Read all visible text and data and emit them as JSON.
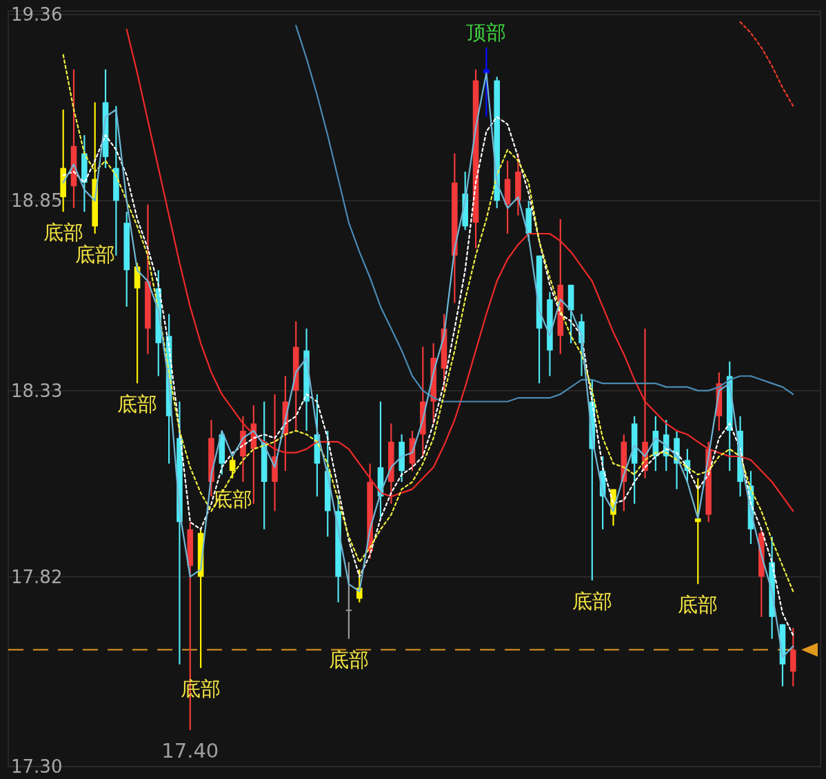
{
  "chart_data": {
    "type": "candlestick",
    "categories": [
      null,
      null,
      null,
      null,
      null,
      null,
      null,
      null,
      null,
      null,
      null,
      null,
      null,
      null,
      null,
      null,
      null,
      null,
      null,
      null,
      null,
      null,
      null,
      null,
      null,
      null,
      null,
      null,
      null,
      null,
      null,
      null,
      null,
      null,
      null,
      null,
      null,
      null,
      null,
      null,
      null,
      null,
      null,
      null,
      null,
      null,
      null,
      null,
      null,
      null,
      null,
      null,
      null,
      null,
      null,
      null,
      null,
      null,
      null,
      null,
      null,
      null,
      null,
      null,
      null,
      null,
      null,
      null,
      null,
      null
    ],
    "ohlc": [
      [
        18.86,
        19.1,
        18.82,
        18.94
      ],
      [
        18.89,
        19.21,
        18.83,
        19.0
      ],
      [
        18.98,
        19.03,
        18.82,
        18.9
      ],
      [
        18.78,
        19.12,
        18.76,
        18.91
      ],
      [
        19.12,
        19.21,
        18.94,
        18.97
      ],
      [
        18.94,
        19.11,
        18.7,
        18.85
      ],
      [
        18.79,
        18.82,
        18.56,
        18.66
      ],
      [
        18.67,
        18.68,
        18.35,
        18.61
      ],
      [
        18.5,
        18.84,
        18.43,
        18.63
      ],
      [
        18.61,
        18.66,
        18.37,
        18.46
      ],
      [
        18.48,
        18.54,
        18.13,
        18.26
      ],
      [
        18.2,
        18.3,
        17.58,
        17.97
      ],
      [
        17.85,
        17.97,
        17.4,
        17.95
      ],
      [
        17.82,
        17.95,
        17.57,
        17.94
      ],
      [
        18.08,
        18.25,
        18.04,
        18.2
      ],
      [
        18.21,
        18.22,
        18.1,
        18.13
      ],
      [
        18.11,
        18.15,
        18.09,
        18.14
      ],
      [
        18.15,
        18.26,
        18.08,
        18.22
      ],
      [
        18.17,
        18.29,
        18.02,
        18.24
      ],
      [
        18.19,
        18.3,
        17.95,
        18.08
      ],
      [
        18.08,
        18.32,
        18.0,
        18.15
      ],
      [
        18.21,
        18.37,
        18.11,
        18.3
      ],
      [
        18.33,
        18.52,
        18.22,
        18.45
      ],
      [
        18.44,
        18.5,
        18.22,
        18.3
      ],
      [
        18.21,
        18.32,
        18.04,
        18.13
      ],
      [
        18.11,
        18.22,
        17.93,
        18.0
      ],
      [
        18.0,
        18.04,
        17.75,
        17.82
      ],
      [
        17.73,
        17.86,
        17.65,
        17.73
      ],
      [
        17.76,
        17.84,
        17.75,
        17.79
      ],
      [
        17.89,
        18.13,
        17.87,
        18.08
      ],
      [
        18.12,
        18.3,
        17.98,
        18.04
      ],
      [
        18.08,
        18.24,
        18.02,
        18.19
      ],
      [
        18.19,
        18.21,
        18.08,
        18.11
      ],
      [
        18.13,
        18.22,
        18.11,
        18.2
      ],
      [
        18.21,
        18.45,
        18.15,
        18.3
      ],
      [
        18.3,
        18.46,
        18.24,
        18.42
      ],
      [
        18.39,
        18.54,
        18.33,
        18.5
      ],
      [
        18.7,
        18.98,
        18.57,
        18.9
      ],
      [
        18.87,
        18.93,
        18.77,
        18.78
      ],
      [
        18.79,
        19.21,
        18.72,
        19.18
      ],
      [
        19.21,
        19.27,
        19.08,
        19.2
      ],
      [
        19.18,
        19.19,
        18.83,
        18.85
      ],
      [
        18.84,
        18.96,
        18.76,
        18.91
      ],
      [
        18.85,
        18.98,
        18.81,
        18.93
      ],
      [
        18.83,
        18.85,
        18.74,
        18.76
      ],
      [
        18.7,
        18.7,
        18.35,
        18.5
      ],
      [
        18.58,
        18.6,
        18.37,
        18.44
      ],
      [
        18.48,
        18.8,
        18.43,
        18.62
      ],
      [
        18.62,
        18.62,
        18.46,
        18.55
      ],
      [
        18.52,
        18.54,
        18.37,
        18.46
      ],
      [
        18.3,
        18.36,
        17.81,
        18.17
      ],
      [
        18.11,
        18.15,
        17.95,
        18.04
      ],
      [
        18.06,
        18.06,
        17.96,
        17.99
      ],
      [
        18.08,
        18.21,
        18.0,
        18.19
      ],
      [
        18.24,
        18.26,
        18.02,
        18.13
      ],
      [
        18.11,
        18.5,
        18.09,
        18.19
      ],
      [
        18.22,
        18.26,
        18.11,
        18.15
      ],
      [
        18.21,
        18.25,
        18.11,
        18.15
      ],
      [
        18.2,
        18.22,
        18.06,
        18.13
      ],
      [
        18.14,
        18.17,
        18.08,
        18.11
      ],
      [
        17.98,
        18.09,
        17.8,
        17.97
      ],
      [
        17.99,
        18.19,
        17.97,
        18.17
      ],
      [
        18.26,
        18.38,
        18.22,
        18.35
      ],
      [
        18.37,
        18.41,
        18.11,
        18.22
      ],
      [
        18.22,
        18.26,
        18.04,
        18.08
      ],
      [
        18.07,
        18.11,
        17.91,
        17.95
      ],
      [
        17.82,
        17.95,
        17.71,
        17.94
      ],
      [
        17.86,
        17.93,
        17.65,
        17.71
      ],
      [
        17.69,
        17.69,
        17.52,
        17.58
      ],
      [
        17.56,
        17.68,
        17.52,
        17.62
      ]
    ],
    "colors": [
      "#fff200",
      "#f23a3a",
      "#4fe8f5",
      "#fff200",
      "#4fe8f5",
      "#4fe8f5",
      "#4fe8f5",
      "#fff200",
      "#f23a3a",
      "#4fe8f5",
      "#4fe8f5",
      "#4fe8f5",
      "#f23a3a",
      "#fff200",
      "#f23a3a",
      "#4fe8f5",
      "#fff200",
      "#f23a3a",
      "#f23a3a",
      "#4fe8f5",
      "#f23a3a",
      "#f23a3a",
      "#f23a3a",
      "#4fe8f5",
      "#4fe8f5",
      "#4fe8f5",
      "#4fe8f5",
      "#9a9a9a",
      "#fff200",
      "#f23a3a",
      "#4fe8f5",
      "#f23a3a",
      "#4fe8f5",
      "#f23a3a",
      "#f23a3a",
      "#f23a3a",
      "#f23a3a",
      "#f23a3a",
      "#4fe8f5",
      "#f23a3a",
      "#0010ff",
      "#4fe8f5",
      "#f23a3a",
      "#f23a3a",
      "#4fe8f5",
      "#4fe8f5",
      "#4fe8f5",
      "#f23a3a",
      "#4fe8f5",
      "#4fe8f5",
      "#4fe8f5",
      "#4fe8f5",
      "#fff200",
      "#f23a3a",
      "#4fe8f5",
      "#f23a3a",
      "#4fe8f5",
      "#4fe8f5",
      "#4fe8f5",
      "#4fe8f5",
      "#fff200",
      "#f23a3a",
      "#f23a3a",
      "#4fe8f5",
      "#4fe8f5",
      "#4fe8f5",
      "#f23a3a",
      "#4fe8f5",
      "#4fe8f5",
      "#f23a3a"
    ],
    "value_labels": [
      "底部",
      null,
      null,
      "底部",
      null,
      null,
      null,
      "底部",
      null,
      null,
      null,
      null,
      "17.40",
      "底部",
      null,
      null,
      "底部",
      null,
      null,
      null,
      null,
      null,
      null,
      null,
      null,
      null,
      null,
      "底部",
      null,
      null,
      null,
      null,
      null,
      null,
      null,
      null,
      null,
      null,
      null,
      null,
      "顶部",
      null,
      null,
      null,
      null,
      null,
      null,
      null,
      null,
      null,
      "底部",
      null,
      null,
      null,
      null,
      null,
      null,
      null,
      null,
      null,
      "底部",
      null,
      null,
      null,
      null,
      null,
      null,
      null,
      null,
      null
    ],
    "series": [
      {
        "type": "line",
        "color": "#f02a2a",
        "line_style": "solid",
        "values": [
          null,
          null,
          null,
          null,
          null,
          null,
          19.32,
          19.2,
          19.07,
          18.94,
          18.81,
          18.68,
          18.56,
          18.46,
          18.38,
          18.32,
          18.28,
          18.24,
          18.21,
          18.19,
          18.17,
          18.16,
          18.16,
          18.17,
          18.19,
          18.19,
          18.19,
          18.17,
          18.13,
          18.09,
          18.05,
          18.04,
          18.05,
          18.06,
          18.09,
          18.12,
          18.18,
          18.25,
          18.34,
          18.44,
          18.54,
          18.63,
          18.69,
          18.73,
          18.76,
          18.76,
          18.76,
          18.74,
          18.71,
          18.67,
          18.63,
          18.56,
          18.49,
          18.43,
          18.36,
          18.3,
          18.27,
          18.24,
          18.22,
          18.21,
          18.19,
          18.17,
          18.16,
          18.15,
          18.15,
          18.14,
          18.11,
          18.08,
          18.04,
          18.0
        ]
      },
      {
        "type": "line",
        "color": "#4a8ab5",
        "line_style": "solid",
        "values": [
          null,
          null,
          null,
          null,
          null,
          null,
          null,
          null,
          null,
          null,
          null,
          null,
          null,
          null,
          null,
          null,
          null,
          null,
          null,
          null,
          null,
          null,
          19.33,
          19.24,
          19.14,
          19.03,
          18.91,
          18.79,
          18.71,
          18.64,
          18.56,
          18.5,
          18.44,
          18.37,
          18.33,
          18.31,
          18.3,
          18.3,
          18.3,
          18.3,
          18.3,
          18.3,
          18.3,
          18.31,
          18.31,
          18.31,
          18.31,
          18.32,
          18.34,
          18.36,
          18.36,
          18.35,
          18.35,
          18.35,
          18.35,
          18.35,
          18.35,
          18.34,
          18.34,
          18.34,
          18.33,
          18.33,
          18.34,
          18.36,
          18.37,
          18.37,
          18.36,
          18.35,
          18.34,
          18.32
        ]
      },
      {
        "type": "line",
        "color": "#ffffff",
        "line_style": "dotted",
        "values": [
          18.92,
          18.93,
          18.9,
          18.96,
          19.03,
          18.99,
          18.92,
          18.8,
          18.72,
          18.62,
          18.45,
          18.22,
          17.97,
          17.95,
          18.02,
          18.12,
          18.16,
          18.18,
          18.2,
          18.21,
          18.2,
          18.24,
          18.26,
          18.32,
          18.3,
          18.2,
          18.06,
          17.92,
          17.82,
          17.88,
          17.98,
          18.05,
          18.1,
          18.12,
          18.15,
          18.24,
          18.35,
          18.5,
          18.66,
          18.9,
          19.04,
          19.08,
          19.06,
          18.97,
          18.87,
          18.74,
          18.62,
          18.54,
          18.52,
          18.48,
          18.3,
          18.12,
          18.02,
          18.03,
          18.08,
          18.12,
          18.15,
          18.17,
          18.16,
          18.12,
          18.06,
          18.1,
          18.2,
          18.24,
          18.17,
          18.02,
          17.95,
          17.86,
          17.72,
          17.66
        ]
      },
      {
        "type": "line",
        "color": "#f0f040",
        "line_style": "dotted",
        "values": [
          19.25,
          19.1,
          18.98,
          18.93,
          18.96,
          18.92,
          18.85,
          18.78,
          18.7,
          18.55,
          18.38,
          18.22,
          18.12,
          18.05,
          18.0,
          18.05,
          18.1,
          18.14,
          18.17,
          18.18,
          18.19,
          18.21,
          18.22,
          18.21,
          18.19,
          18.13,
          18.03,
          17.93,
          17.86,
          17.9,
          17.95,
          17.99,
          18.06,
          18.08,
          18.13,
          18.2,
          18.32,
          18.44,
          18.58,
          18.7,
          18.8,
          18.92,
          18.99,
          18.96,
          18.9,
          18.74,
          18.64,
          18.55,
          18.48,
          18.43,
          18.33,
          18.2,
          18.13,
          18.12,
          18.1,
          18.14,
          18.16,
          18.16,
          18.14,
          18.12,
          18.1,
          18.11,
          18.15,
          18.17,
          18.15,
          18.06,
          18.0,
          17.92,
          17.85,
          17.78
        ]
      },
      {
        "type": "line",
        "color": "#6fb7d6",
        "line_style": "solid",
        "values": [
          18.9,
          18.95,
          18.88,
          18.85,
          19.08,
          19.1,
          18.85,
          18.66,
          18.63,
          18.55,
          18.35,
          18.0,
          17.82,
          17.84,
          18.1,
          18.22,
          18.15,
          18.2,
          18.22,
          18.18,
          18.12,
          18.25,
          18.38,
          18.42,
          18.22,
          18.1,
          17.95,
          17.8,
          17.78,
          17.95,
          18.05,
          18.12,
          18.15,
          18.16,
          18.25,
          18.38,
          18.48,
          18.72,
          18.85,
          19.05,
          19.2,
          18.9,
          18.83,
          18.86,
          18.75,
          18.55,
          18.48,
          18.58,
          18.55,
          18.48,
          18.2,
          18.05,
          18.0,
          18.1,
          18.18,
          18.15,
          18.2,
          18.18,
          18.15,
          18.08,
          17.98,
          18.15,
          18.33,
          18.35,
          18.15,
          18.0,
          17.88,
          17.78,
          17.6,
          17.63
        ]
      },
      {
        "type": "line",
        "color": "#f03a2a",
        "line_style": "dotted",
        "values": [
          null,
          null,
          null,
          null,
          null,
          null,
          null,
          null,
          null,
          null,
          null,
          null,
          null,
          null,
          null,
          null,
          null,
          null,
          null,
          null,
          null,
          null,
          null,
          null,
          null,
          null,
          null,
          null,
          null,
          null,
          null,
          null,
          null,
          null,
          null,
          null,
          null,
          null,
          null,
          null,
          null,
          null,
          null,
          null,
          null,
          null,
          null,
          null,
          null,
          null,
          null,
          null,
          null,
          null,
          null,
          null,
          null,
          null,
          null,
          null,
          null,
          null,
          null,
          null,
          19.34,
          19.31,
          19.27,
          19.22,
          19.16,
          19.11
        ]
      }
    ],
    "ylim": [
      17.3,
      19.37
    ],
    "yticks": [
      19.36,
      18.85,
      18.33,
      17.82,
      {
        "value": 17.3,
        "label": "17.30"
      }
    ],
    "grid": "y",
    "tick_labels": "y",
    "ref_lines": [
      {
        "axis": "y",
        "value": 17.62,
        "color": "#e09a1e",
        "line_style": "dashed"
      }
    ]
  }
}
